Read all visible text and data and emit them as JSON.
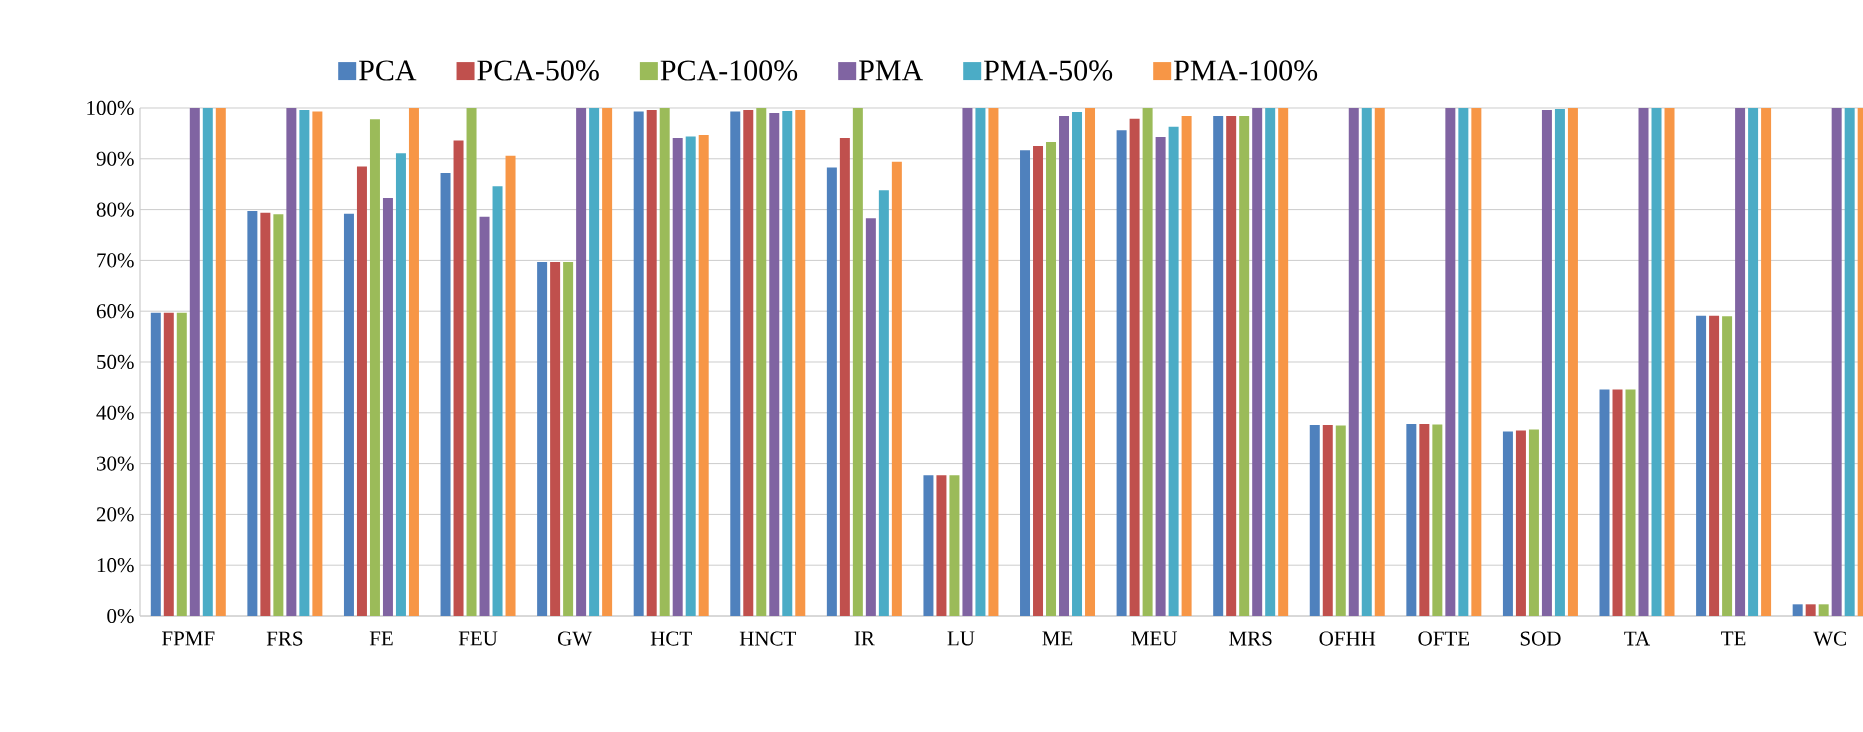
{
  "chart_data": {
    "type": "bar",
    "categories": [
      "FPMF",
      "FRS",
      "FE",
      "FEU",
      "GW",
      "HCT",
      "HNCT",
      "IR",
      "LU",
      "ME",
      "MEU",
      "MRS",
      "OFHH",
      "OFTE",
      "SOD",
      "TA",
      "TE",
      "WC"
    ],
    "series": [
      {
        "name": "PCA",
        "color": "#4f81bd",
        "values": [
          59.7,
          79.7,
          79.2,
          87.2,
          69.7,
          99.3,
          99.3,
          88.3,
          27.7,
          91.7,
          95.6,
          98.4,
          37.6,
          37.8,
          36.3,
          44.6,
          59.1,
          2.3
        ]
      },
      {
        "name": "PCA-50%",
        "color": "#c0504d",
        "values": [
          59.7,
          79.4,
          88.5,
          93.6,
          69.7,
          99.6,
          99.6,
          94.1,
          27.7,
          92.5,
          97.9,
          98.4,
          37.6,
          37.8,
          36.5,
          44.6,
          59.1,
          2.3
        ]
      },
      {
        "name": "PCA-100%",
        "color": "#9bbb59",
        "values": [
          59.7,
          79.1,
          97.8,
          100,
          69.7,
          100,
          100,
          100,
          27.7,
          93.3,
          100,
          98.4,
          37.5,
          37.7,
          36.7,
          44.6,
          59.0,
          2.3
        ]
      },
      {
        "name": "PMA",
        "color": "#8064a2",
        "values": [
          100,
          100,
          82.3,
          78.6,
          100,
          94.1,
          99.0,
          78.3,
          100,
          98.4,
          94.3,
          100,
          100,
          100,
          99.6,
          100,
          100,
          100
        ]
      },
      {
        "name": "PMA-50%",
        "color": "#4bacc6",
        "values": [
          100,
          99.6,
          91.1,
          84.6,
          100,
          94.4,
          99.4,
          83.8,
          100,
          99.2,
          96.3,
          100,
          100,
          100,
          99.8,
          100,
          100,
          100
        ]
      },
      {
        "name": "PMA-100%",
        "color": "#f79646",
        "values": [
          100,
          99.3,
          100,
          90.6,
          100,
          94.7,
          99.6,
          89.4,
          100,
          100,
          98.4,
          100,
          100,
          100,
          100,
          100,
          100,
          100
        ]
      }
    ],
    "ylim": [
      0,
      100
    ],
    "yticks": [
      {
        "value": 0,
        "label": "0%"
      },
      {
        "value": 10,
        "label": "10%"
      },
      {
        "value": 20,
        "label": "20%"
      },
      {
        "value": 30,
        "label": "30%"
      },
      {
        "value": 40,
        "label": "40%"
      },
      {
        "value": 50,
        "label": "50%"
      },
      {
        "value": 60,
        "label": "60%"
      },
      {
        "value": 70,
        "label": "70%"
      },
      {
        "value": 80,
        "label": "80%"
      },
      {
        "value": 90,
        "label": "90%"
      },
      {
        "value": 100,
        "label": "100%"
      }
    ],
    "grid": "y",
    "legend": "top"
  }
}
